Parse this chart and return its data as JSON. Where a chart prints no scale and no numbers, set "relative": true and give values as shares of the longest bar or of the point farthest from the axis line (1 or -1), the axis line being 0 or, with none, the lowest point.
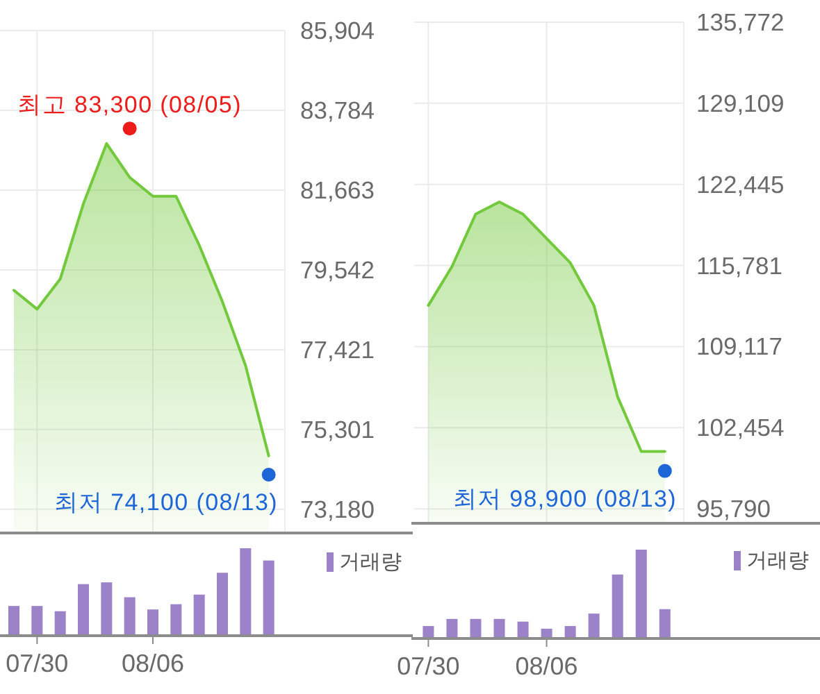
{
  "chart_data": [
    {
      "type": "area",
      "categories": [
        null,
        "07/30",
        null,
        null,
        null,
        null,
        "08/06",
        null,
        null,
        null,
        null,
        null
      ],
      "series": [
        {
          "type": "area",
          "color": "#72c93c",
          "values": [
            79000,
            78500,
            79300,
            81300,
            82900,
            82000,
            81500,
            81500,
            80200,
            78700,
            77000,
            74600
          ]
        },
        {
          "type": "scatter",
          "color": "#ee1b1b",
          "marker": "circle",
          "values": [
            null,
            null,
            null,
            null,
            null,
            83300,
            null,
            null,
            null,
            null,
            null,
            null
          ],
          "value_labels": [
            null,
            null,
            null,
            null,
            null,
            "최고 83,300 (08/05)",
            null,
            null,
            null,
            null,
            null,
            null
          ]
        },
        {
          "type": "scatter",
          "color": "#1d66d8",
          "marker": "circle",
          "values": [
            null,
            null,
            null,
            null,
            null,
            null,
            null,
            null,
            null,
            null,
            null,
            74100
          ],
          "value_labels": [
            null,
            null,
            null,
            null,
            null,
            null,
            null,
            null,
            null,
            null,
            null,
            "최저 74,100 (08/13)"
          ]
        }
      ],
      "ylim": [
        72550,
        85904
      ],
      "yticks": [
        {
          "value": 73180,
          "label": "73,180"
        },
        {
          "value": 75301,
          "label": "75,301"
        },
        {
          "value": 77421,
          "label": "77,421"
        },
        {
          "value": 79542,
          "label": "79,542"
        },
        {
          "value": 81663,
          "label": "81,663"
        },
        {
          "value": 83784,
          "label": "83,784"
        },
        {
          "value": 85904,
          "label": "85,904"
        }
      ],
      "grid": true
    },
    {
      "type": "area",
      "categories": [
        "07/30",
        null,
        null,
        null,
        null,
        "08/06",
        null,
        null,
        null,
        null,
        null
      ],
      "series": [
        {
          "type": "area",
          "color": "#72c93c",
          "values": [
            112500,
            115700,
            120000,
            121000,
            120000,
            118000,
            116000,
            112500,
            105000,
            100500,
            100500
          ]
        },
        {
          "type": "scatter",
          "color": "#1d66d8",
          "marker": "circle",
          "values": [
            null,
            null,
            null,
            null,
            null,
            null,
            null,
            null,
            null,
            null,
            98900
          ],
          "value_labels": [
            null,
            null,
            null,
            null,
            null,
            null,
            null,
            null,
            null,
            null,
            "최저 98,900 (08/13)"
          ]
        }
      ],
      "ylim": [
        94600,
        135772
      ],
      "yticks": [
        {
          "value": 95790,
          "label": "95,790"
        },
        {
          "value": 102454,
          "label": "102,454"
        },
        {
          "value": 109117,
          "label": "109,117"
        },
        {
          "value": 115781,
          "label": "115,781"
        },
        {
          "value": 122445,
          "label": "122,445"
        },
        {
          "value": 129109,
          "label": "129,109"
        },
        {
          "value": 135772,
          "label": "135,772"
        }
      ],
      "grid": true
    },
    {
      "type": "bar",
      "categories": [
        null,
        null,
        null,
        null,
        null,
        null,
        null,
        null,
        null,
        null,
        null,
        null
      ],
      "relative": true,
      "series": [
        {
          "name": "거래량",
          "color": "#9b82c9",
          "values": [
            0.34,
            0.34,
            0.28,
            0.59,
            0.61,
            0.44,
            0.3,
            0.36,
            0.47,
            0.72,
            1,
            0.86
          ]
        }
      ],
      "legend": "top right"
    },
    {
      "type": "bar",
      "categories": [
        null,
        null,
        null,
        null,
        null,
        null,
        null,
        null,
        null,
        null,
        null
      ],
      "relative": true,
      "series": [
        {
          "name": "거래량",
          "color": "#9b82c9",
          "values": [
            0.14,
            0.22,
            0.22,
            0.22,
            0.19,
            0.11,
            0.14,
            0.28,
            0.72,
            1,
            0.33
          ]
        }
      ],
      "legend": "top right"
    }
  ]
}
